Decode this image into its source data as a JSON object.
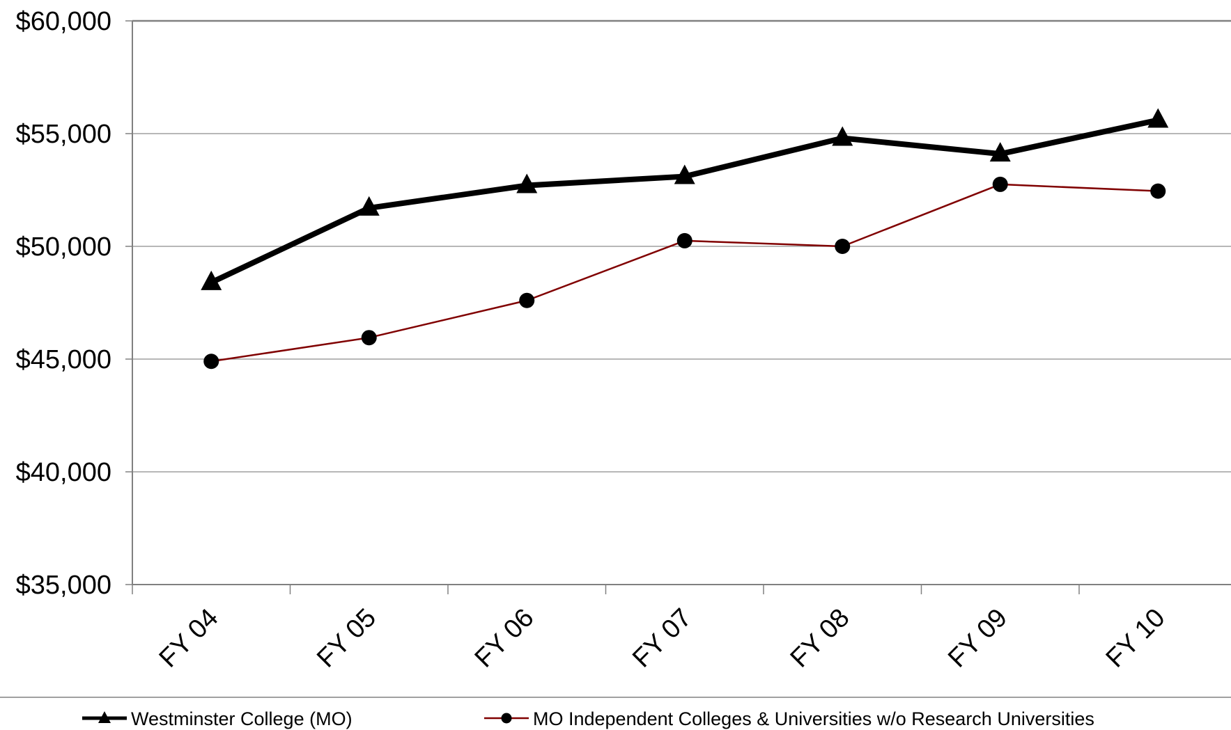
{
  "chart_data": {
    "type": "line",
    "categories": [
      "FY 04",
      "FY 05",
      "FY 06",
      "FY 07",
      "FY 08",
      "FY 09",
      "FY 10"
    ],
    "series": [
      {
        "name": "Westminster College (MO)",
        "values": [
          48400,
          51700,
          52700,
          53100,
          54800,
          54100,
          55600
        ],
        "color": "#000000",
        "marker": "triangle"
      },
      {
        "name": "MO Independent Colleges & Universities w/o Research Universities",
        "values": [
          44900,
          45950,
          47600,
          50250,
          50000,
          52750,
          52450
        ],
        "color": "#800000",
        "marker": "circle"
      }
    ],
    "y_ticks": [
      "$35,000",
      "$40,000",
      "$45,000",
      "$50,000",
      "$55,000",
      "$60,000"
    ],
    "ylim": [
      35000,
      60000
    ],
    "grid": true,
    "legend_position": "bottom"
  }
}
